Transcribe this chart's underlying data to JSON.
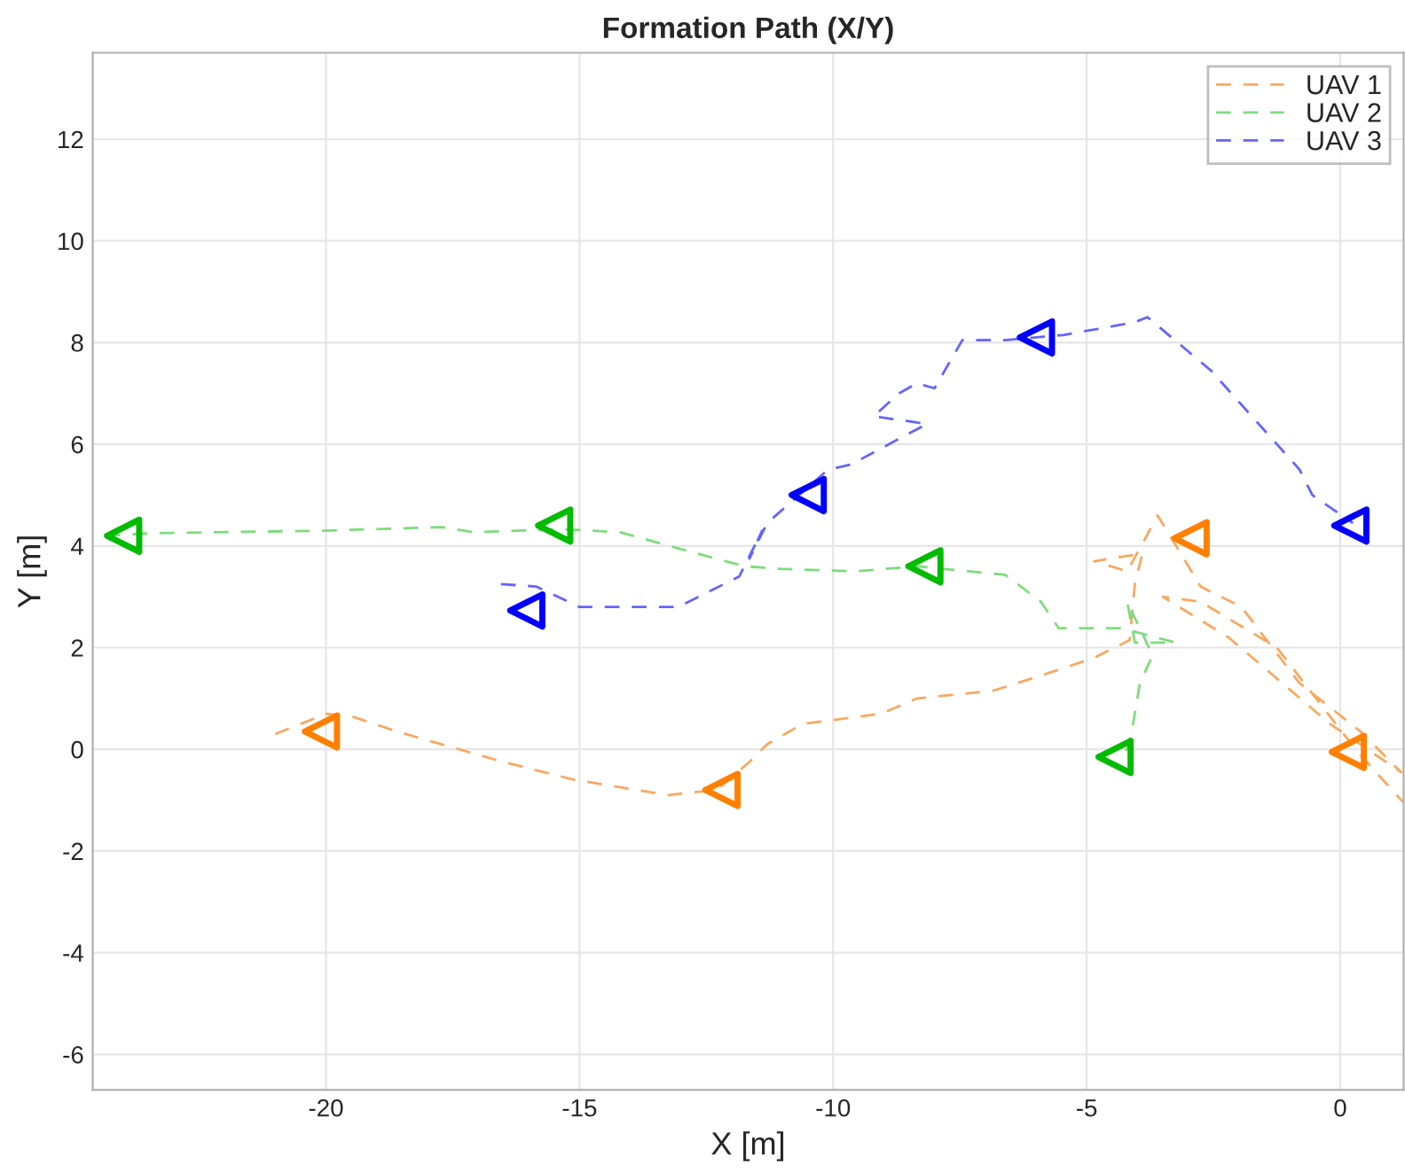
{
  "chart_data": {
    "type": "line",
    "title": "Formation Path (X/Y)",
    "xlabel": "X [m]",
    "ylabel": "Y [m]",
    "xlim": [
      -24.6,
      1.25
    ],
    "ylim": [
      -6.7,
      13.7
    ],
    "xticks": [
      -20,
      -15,
      -10,
      -5,
      0
    ],
    "yticks": [
      -6,
      -4,
      -2,
      0,
      2,
      4,
      6,
      8,
      10,
      12
    ],
    "grid": true,
    "legend": "top right",
    "line_style": "dashed",
    "marker": "none",
    "series": [
      {
        "name": "UAV 1",
        "color": "#f9a860",
        "x": [
          -21,
          -20,
          -19.5,
          -18.6,
          -16.5,
          -15.1,
          -13.25,
          -12.3,
          -11.65,
          -11.3,
          -10.6,
          -9.05,
          -8.35,
          -6.85,
          -5.9,
          -4.85,
          -4.15,
          -4.05,
          -3.9,
          -4.85,
          -4.2,
          -3.6,
          -2.75,
          -1.95,
          -0.8,
          0.4,
          1.2,
          -0.2,
          -2.2,
          -3.5,
          -2.75,
          -1.25,
          0.3,
          1.25
        ],
        "values": [
          0.3,
          0.7,
          0.65,
          0.35,
          -0.25,
          -0.6,
          -0.9,
          -0.8,
          -0.25,
          0.1,
          0.5,
          0.7,
          1.0,
          1.15,
          1.45,
          1.8,
          2.15,
          3.25,
          3.85,
          3.7,
          3.5,
          4.6,
          3.2,
          2.8,
          1.3,
          0.35,
          -0.45,
          0.5,
          2.2,
          3.0,
          2.9,
          2.0,
          0.0,
          -1.05
        ]
      },
      {
        "name": "UAV 2",
        "color": "#7ddc7d",
        "x": [
          -24.35,
          -23.5,
          -20.05,
          -17.7,
          -17.1,
          -15.35,
          -14.2,
          -13.05,
          -11.75,
          -11.05,
          -9.55,
          -8.35,
          -6.6,
          -5.9,
          -5.55,
          -4.3,
          -3.25,
          -4.05,
          -4.2,
          -3.7,
          -3.95,
          -4.15,
          -4.35
        ],
        "values": [
          4.2,
          4.25,
          4.3,
          4.37,
          4.27,
          4.33,
          4.27,
          3.95,
          3.6,
          3.55,
          3.5,
          3.6,
          3.43,
          2.9,
          2.38,
          2.38,
          2.1,
          2.1,
          2.9,
          1.85,
          1.3,
          0.1,
          -0.2
        ]
      },
      {
        "name": "UAV 3",
        "color": "#6464ff",
        "x": [
          -16.55,
          -15.85,
          -15.0,
          -13.05,
          -11.85,
          -11.4,
          -11.65,
          -11.3,
          -10.1,
          -9.65,
          -8.15,
          -9.2,
          -8.7,
          -8.35,
          -8.0,
          -7.45,
          -6.6,
          -5.45,
          -4.05,
          -3.8,
          -2.55,
          -0.8,
          -0.55,
          0.25
        ],
        "values": [
          3.25,
          3.2,
          2.8,
          2.8,
          3.4,
          4.3,
          3.75,
          4.45,
          5.5,
          5.6,
          6.4,
          6.55,
          7.0,
          7.2,
          7.1,
          8.05,
          8.05,
          8.15,
          8.4,
          8.5,
          7.45,
          5.5,
          5.0,
          4.45
        ]
      },
      {
        "type": "scatter",
        "marker": "triangle",
        "color": "#ff8000",
        "x": [
          -20.1,
          -12.2,
          -2.95,
          0.15
        ],
        "values": [
          0.35,
          -0.8,
          4.15,
          -0.05
        ]
      },
      {
        "type": "scatter",
        "marker": "triangle",
        "color": "#00bb00",
        "x": [
          -24.0,
          -15.5,
          -8.2,
          -4.45
        ],
        "values": [
          4.2,
          4.4,
          3.6,
          -0.15
        ]
      },
      {
        "type": "scatter",
        "marker": "triangle",
        "color": "#0000ff",
        "x": [
          -16.05,
          -10.5,
          -6.0,
          0.2
        ],
        "values": [
          2.73,
          5.0,
          8.1,
          4.4
        ]
      }
    ]
  }
}
